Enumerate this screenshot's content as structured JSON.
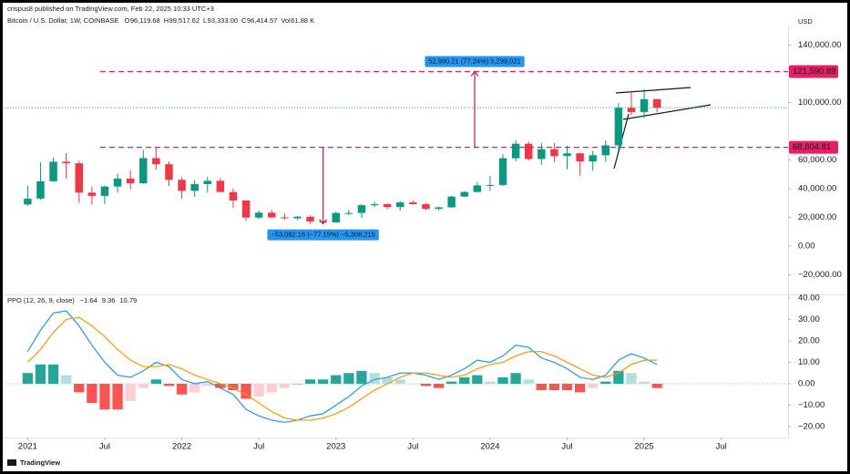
{
  "header": {
    "publisher": "crispus8 published on TradingView.com, Feb 22, 2025 10:33 UTC+3",
    "symbol": "Bitcoin / U.S. Dollar, 1W, COINBASE",
    "ohlc": [
      {
        "key": "O",
        "value": "96,119.68"
      },
      {
        "key": "H",
        "value": "99,517.62"
      },
      {
        "key": "L",
        "value": "93,333.00"
      },
      {
        "key": "C",
        "value": "96,414.57"
      },
      {
        "key": "Vol",
        "value": "61.88 K"
      }
    ]
  },
  "footer": {
    "brand": "TradingView"
  },
  "chart_data": [
    {
      "type": "candlestick",
      "currency": "USD",
      "x": [
        0,
        1,
        2,
        3,
        4,
        5,
        6,
        7,
        8,
        9,
        10,
        11,
        12,
        13,
        14,
        15,
        16,
        17,
        18,
        19,
        20,
        21,
        22,
        23,
        24,
        25,
        26,
        27,
        28,
        29,
        30,
        31,
        32,
        33,
        34,
        35,
        36,
        37,
        38,
        39,
        40,
        41,
        42,
        43,
        44,
        45,
        46,
        47,
        48,
        49
      ],
      "open": [
        29000,
        33100,
        45200,
        58800,
        57700,
        37300,
        35000,
        41500,
        47100,
        43800,
        61300,
        57000,
        46200,
        38500,
        43200,
        45500,
        37700,
        31800,
        19900,
        23300,
        20000,
        19400,
        20500,
        17200,
        16500,
        23100,
        23100,
        28500,
        29200,
        27200,
        30500,
        29200,
        26000,
        27000,
        34500,
        37700,
        42300,
        42600,
        61200,
        71300,
        60700,
        67500,
        62700,
        64600,
        59000,
        63300,
        70200,
        96400,
        93400,
        102400
      ],
      "high": [
        41900,
        58300,
        61700,
        64800,
        59500,
        41300,
        42300,
        50500,
        52900,
        67000,
        69000,
        59000,
        48000,
        45800,
        48200,
        47400,
        40000,
        31900,
        24600,
        25200,
        22700,
        21000,
        21400,
        18400,
        23900,
        25200,
        29200,
        31000,
        29800,
        31400,
        31800,
        30200,
        27500,
        35200,
        38400,
        44700,
        48900,
        64000,
        73800,
        72800,
        71900,
        71900,
        70000,
        65000,
        66500,
        73600,
        99600,
        108300,
        109400,
        102500
      ],
      "low": [
        28100,
        32300,
        44900,
        47000,
        30000,
        28800,
        29300,
        37300,
        39600,
        43300,
        53300,
        42000,
        33000,
        34300,
        37200,
        37700,
        26700,
        17600,
        18800,
        19600,
        18200,
        18200,
        15500,
        16300,
        16500,
        21400,
        19600,
        27000,
        25800,
        24800,
        28900,
        25200,
        24900,
        26600,
        34100,
        37600,
        38500,
        41900,
        59100,
        59600,
        56600,
        58400,
        53500,
        49000,
        52600,
        58900,
        66800,
        91300,
        89200,
        93300
      ],
      "close": [
        33100,
        45200,
        58800,
        57700,
        37300,
        35000,
        41500,
        47100,
        43800,
        61300,
        57000,
        46200,
        38500,
        43200,
        45500,
        37700,
        31800,
        19900,
        23300,
        20000,
        19400,
        20500,
        17200,
        16500,
        23100,
        23100,
        28500,
        29200,
        27200,
        30500,
        29200,
        26000,
        27000,
        34500,
        37700,
        42300,
        42600,
        61200,
        71300,
        60700,
        67500,
        62700,
        64600,
        59000,
        63300,
        70200,
        96400,
        93400,
        102400,
        96400
      ],
      "up_color": "#089981",
      "down_color": "#f23645",
      "xlim": [
        -1.8,
        59.2
      ],
      "ylim": [
        -32000,
        152000
      ],
      "yticks": [
        {
          "value": 140000,
          "label": "140,000.00"
        },
        {
          "value": 100000,
          "label": "100,000.00"
        },
        {
          "value": 60000,
          "label": "60,000.00"
        },
        {
          "value": 40000,
          "label": "40,000.00"
        },
        {
          "value": 20000,
          "label": "20,000.00"
        },
        {
          "value": 0,
          "label": "0.00"
        },
        {
          "value": -20000,
          "label": "−20,000.00"
        }
      ],
      "levels": [
        {
          "value": 121590.89,
          "label": "121,590.89",
          "color": "#e91e63"
        },
        {
          "value": 68804.81,
          "label": "68,804.81",
          "color": "#e91e63"
        }
      ],
      "measurements": [
        {
          "x": 34.8,
          "label": "52,990.21 (77.24%) 5,299,021"
        },
        {
          "x": 23,
          "label": "−53,082.16 (−77.15%) −5,308,215"
        }
      ]
    },
    {
      "type": "line",
      "title": "PPO (12, 26, 9, close)",
      "legend_values": [
        "−1.64",
        "9.36",
        "10.79"
      ],
      "x": [
        0,
        1,
        2,
        3,
        4,
        5,
        6,
        7,
        8,
        9,
        10,
        11,
        12,
        13,
        14,
        15,
        16,
        17,
        18,
        19,
        20,
        21,
        22,
        23,
        24,
        25,
        26,
        27,
        28,
        29,
        30,
        31,
        32,
        33,
        34,
        35,
        36,
        37,
        38,
        39,
        40,
        41,
        42,
        43,
        44,
        45,
        46,
        47,
        48,
        49
      ],
      "histogram": [
        5,
        9,
        9,
        4,
        -4,
        -9,
        -12,
        -12,
        -8,
        -2,
        2,
        -1,
        -5,
        -4,
        -1,
        -2,
        -3,
        -7,
        -6,
        -4,
        -2,
        0,
        2,
        2,
        4,
        5,
        6,
        5,
        3,
        2,
        0,
        -1,
        -2,
        1,
        3,
        4,
        1,
        3,
        5,
        2,
        -3,
        -3,
        -3,
        -4,
        -2,
        1,
        6,
        5,
        1,
        -2
      ],
      "series": [
        {
          "color": "#2196f3",
          "values": [
            15,
            25,
            33,
            34,
            27,
            18,
            10,
            4,
            3,
            6,
            10,
            8,
            2,
            0,
            1,
            -2,
            -5,
            -12,
            -15,
            -17,
            -18,
            -17,
            -15,
            -14,
            -10,
            -6,
            -1,
            2,
            3,
            5,
            5,
            4,
            2,
            4,
            7,
            11,
            10,
            13,
            18,
            17,
            12,
            10,
            7,
            3,
            2,
            4,
            11,
            14,
            12,
            9
          ]
        },
        {
          "color": "#ff9800",
          "values": [
            10,
            16,
            24,
            30,
            31,
            27,
            22,
            16,
            11,
            8,
            8,
            9,
            7,
            4,
            2,
            0,
            -2,
            -5,
            -9,
            -13,
            -16,
            -17,
            -17,
            -16,
            -14,
            -11,
            -7,
            -3,
            0,
            3,
            5,
            5,
            4,
            3,
            4,
            7,
            9,
            10,
            13,
            15,
            15,
            13,
            10,
            7,
            4,
            3,
            5,
            9,
            11,
            11
          ]
        }
      ],
      "xlim": [
        -1.8,
        59.2
      ],
      "ylim": [
        -25,
        41
      ],
      "yticks": [
        {
          "value": 40,
          "label": "40.00"
        },
        {
          "value": 30,
          "label": "30.00"
        },
        {
          "value": 20,
          "label": "20.00"
        },
        {
          "value": 10,
          "label": "10.00"
        },
        {
          "value": 0,
          "label": "0.00"
        },
        {
          "value": -10,
          "label": "−10.00"
        },
        {
          "value": -20,
          "label": "−20.00"
        }
      ],
      "xticks": [
        {
          "value": 0,
          "label": "2021"
        },
        {
          "value": 6,
          "label": "Jul"
        },
        {
          "value": 12,
          "label": "2022"
        },
        {
          "value": 18,
          "label": "Jul"
        },
        {
          "value": 24,
          "label": "2023"
        },
        {
          "value": 30,
          "label": "Jul"
        },
        {
          "value": 36,
          "label": "2024"
        },
        {
          "value": 42,
          "label": "Jul"
        },
        {
          "value": 48,
          "label": "2025"
        },
        {
          "value": 54,
          "label": "Jul"
        }
      ]
    }
  ]
}
